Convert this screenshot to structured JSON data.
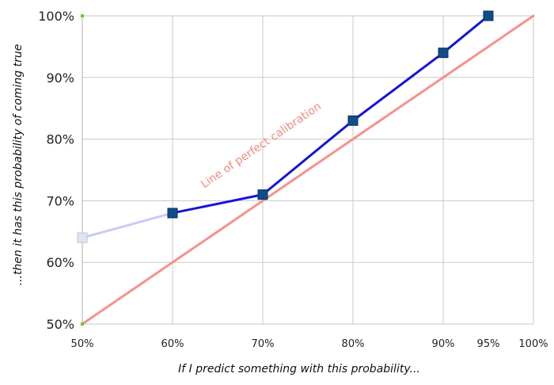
{
  "chart_data": {
    "type": "line",
    "xlabel": "If I predict something with this probability...",
    "ylabel": "...then it has this probability of coming true",
    "xlim": [
      50,
      100
    ],
    "ylim": [
      50,
      100
    ],
    "x_ticks": [
      {
        "value": 50,
        "label": "50%"
      },
      {
        "value": 60,
        "label": "60%"
      },
      {
        "value": 70,
        "label": "70%"
      },
      {
        "value": 80,
        "label": "80%"
      },
      {
        "value": 90,
        "label": "90%"
      },
      {
        "value": 95,
        "label": "95%"
      },
      {
        "value": 100,
        "label": "100%"
      }
    ],
    "y_ticks": [
      {
        "value": 50,
        "label": "50%"
      },
      {
        "value": 60,
        "label": "60%"
      },
      {
        "value": 70,
        "label": "70%"
      },
      {
        "value": 80,
        "label": "80%"
      },
      {
        "value": 90,
        "label": "90%"
      },
      {
        "value": 100,
        "label": "100%"
      }
    ],
    "grid": true,
    "series": [
      {
        "role": "faded-segment",
        "color": "#c8ccf4",
        "marker_color": "#dde6f3",
        "points": [
          {
            "x": 50,
            "y": 64
          },
          {
            "x": 60,
            "y": 68
          }
        ]
      },
      {
        "role": "observed",
        "color": "#1414d8",
        "marker_color": "#0f4c8c",
        "points": [
          {
            "x": 60,
            "y": 68
          },
          {
            "x": 70,
            "y": 71
          },
          {
            "x": 80,
            "y": 83
          },
          {
            "x": 90,
            "y": 94
          },
          {
            "x": 95,
            "y": 100
          }
        ]
      },
      {
        "role": "perfect-calibration",
        "name": "Line of perfect calibration",
        "color": "#f4938a",
        "points": [
          {
            "x": 50,
            "y": 50
          },
          {
            "x": 100,
            "y": 100
          }
        ]
      }
    ],
    "axis_marker_color": "#66cc22"
  }
}
